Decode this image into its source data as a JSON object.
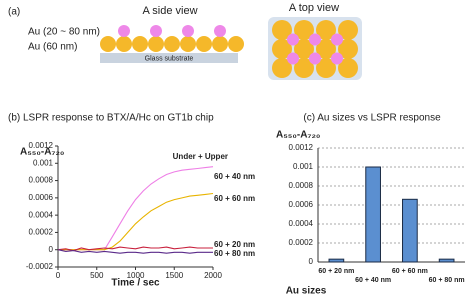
{
  "panel_a": {
    "label": "(a)",
    "side_title": "A side view",
    "top_title": "A top view",
    "legend": [
      "Au (20 ~ 80 nm)",
      "Au (60 nm)"
    ],
    "substrate": "Glass substrate"
  },
  "chart_data": [
    {
      "type": "line",
      "title": "(b) LSPR response to BTX/A/Hc on GT1b chip",
      "x": [
        0,
        100,
        200,
        300,
        400,
        500,
        600,
        700,
        800,
        900,
        1000,
        1100,
        1200,
        1300,
        1400,
        1500,
        1600,
        1700,
        1800,
        1900,
        2000
      ],
      "series": [
        {
          "name": "60 + 40 nm",
          "color": "#ee7fe6",
          "values": [
            0,
            0,
            0,
            0,
            0,
            0,
            0,
            0.00015,
            0.0003,
            0.00045,
            0.00058,
            0.00068,
            0.00076,
            0.00082,
            0.00087,
            0.0009,
            0.00092,
            0.00093,
            0.00094,
            0.00095,
            0.00096
          ]
        },
        {
          "name": "60 + 60 nm",
          "color": "#e8b400",
          "values": [
            0,
            0,
            0,
            0,
            0,
            0,
            0,
            3e-05,
            0.0001,
            0.0002,
            0.0003,
            0.00038,
            0.00045,
            0.0005,
            0.00055,
            0.00058,
            0.0006,
            0.00062,
            0.00063,
            0.00064,
            0.00065
          ]
        },
        {
          "name": "60 + 20 nm",
          "color": "#c8203c",
          "values": [
            0,
            1e-05,
            -1e-05,
            2e-05,
            0,
            1e-05,
            2e-05,
            1e-05,
            3e-05,
            2e-05,
            1e-05,
            3e-05,
            2e-05,
            2e-05,
            3e-05,
            1e-05,
            2e-05,
            3e-05,
            2e-05,
            2e-05,
            2e-05
          ]
        },
        {
          "name": "60 + 80 nm",
          "color": "#5a2a8a",
          "values": [
            0,
            -2e-05,
            -1e-05,
            -3e-05,
            -2e-05,
            -3e-05,
            -2e-05,
            -3e-05,
            -4e-05,
            -3e-05,
            -3e-05,
            -4e-05,
            -3e-05,
            -3e-05,
            -4e-05,
            -3e-05,
            -3e-05,
            -4e-05,
            -3e-05,
            -3e-05,
            -3e-05
          ]
        }
      ],
      "legend_title": "Under + Upper",
      "x_label": "Time / sec",
      "y_label": "A₅₅₀-A₇₂₀",
      "xlim": [
        0,
        2000
      ],
      "ylim": [
        -0.0002,
        0.0012
      ],
      "xticks": [
        0,
        500,
        1000,
        1500,
        2000
      ],
      "yticks": [
        -0.0002,
        0,
        0.0002,
        0.0004,
        0.0006,
        0.0008,
        0.001,
        0.0012
      ]
    },
    {
      "type": "bar",
      "title": "(c) Au sizes vs LSPR response",
      "categories": [
        "60 + 20 nm",
        "60 + 40 nm",
        "60 + 60 nm",
        "60 + 80 nm"
      ],
      "values": [
        3e-05,
        0.001,
        0.00066,
        3e-05
      ],
      "color": "#5b8fd0",
      "x_label": "Au sizes",
      "y_label": "A₅₅₀-A₇₂₀",
      "ylim": [
        0,
        0.0012
      ],
      "yticks": [
        0,
        0.0002,
        0.0004,
        0.0006,
        0.0008,
        0.001,
        0.0012
      ],
      "grid": true
    }
  ]
}
